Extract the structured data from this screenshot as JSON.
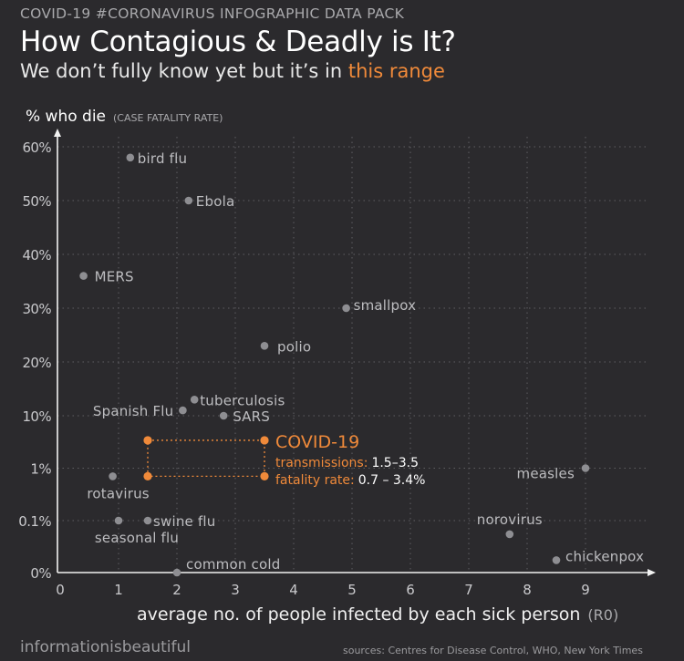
{
  "header": {
    "kicker": "COVID-19 #CORONAVIRUS INFOGRAPHIC DATA PACK",
    "title": "How Contagious  & Deadly is It?",
    "subtitle_prefix": "We don’t fully know yet but it’s in ",
    "subtitle_highlight": "this range"
  },
  "footer": {
    "credit": "informationisbeautiful",
    "sources": "sources: Centres for Disease Control, WHO, New York Times"
  },
  "colors": {
    "background": "#2b2a2d",
    "point": "#8e8e92",
    "label": "#bdbdc0",
    "highlight": "#f08a3a",
    "grid": "#5f5f63"
  },
  "chart_data": {
    "type": "scatter",
    "ylabel": "% who die",
    "ylabel_note": "(CASE FATALITY RATE)",
    "xlabel": "average no. of people infected by each sick person",
    "xlabel_note": "(R0)",
    "x_ticks": [
      "0",
      "1",
      "2",
      "3",
      "4",
      "5",
      "6",
      "7",
      "8",
      "9"
    ],
    "y_ticks": [
      "0%",
      "0.1%",
      "1%",
      "10%",
      "20%",
      "30%",
      "40%",
      "50%",
      "60%"
    ],
    "xlim": [
      0,
      10
    ],
    "y_scale": "piecewise-log: 0%, 0.1%, 1%, 10% evenly spaced below linear 10–60%",
    "grid": true,
    "points": [
      {
        "name": "bird flu",
        "x": 1.2,
        "y": 58
      },
      {
        "name": "Ebola",
        "x": 2.2,
        "y": 50
      },
      {
        "name": "MERS",
        "x": 0.4,
        "y": 36
      },
      {
        "name": "smallpox",
        "x": 4.9,
        "y": 30
      },
      {
        "name": "polio",
        "x": 3.5,
        "y": 23
      },
      {
        "name": "tuberculosis",
        "x": 2.3,
        "y": 13
      },
      {
        "name": "Spanish Flu",
        "x": 2.1,
        "y": 11
      },
      {
        "name": "SARS",
        "x": 2.8,
        "y": 10
      },
      {
        "name": "measles",
        "x": 9.0,
        "y": 1
      },
      {
        "name": "rotavirus",
        "x": 0.9,
        "y": 0.7
      },
      {
        "name": "swine flu",
        "x": 1.5,
        "y": 0.1
      },
      {
        "name": "seasonal flu",
        "x": 1.0,
        "y": 0.1
      },
      {
        "name": "norovirus",
        "x": 7.7,
        "y": 0.03
      },
      {
        "name": "chickenpox",
        "x": 8.5,
        "y": 0.003
      },
      {
        "name": "common cold",
        "x": 2.0,
        "y": 0.0
      }
    ],
    "highlight": {
      "name": "COVID-19",
      "x_range": [
        1.5,
        3.5
      ],
      "y_range": [
        0.7,
        3.4
      ],
      "transmissions_label": "transmissions:",
      "transmissions_value": "1.5–3.5",
      "fatality_label": "fatality rate:",
      "fatality_value": "0.7 – 3.4%"
    }
  }
}
